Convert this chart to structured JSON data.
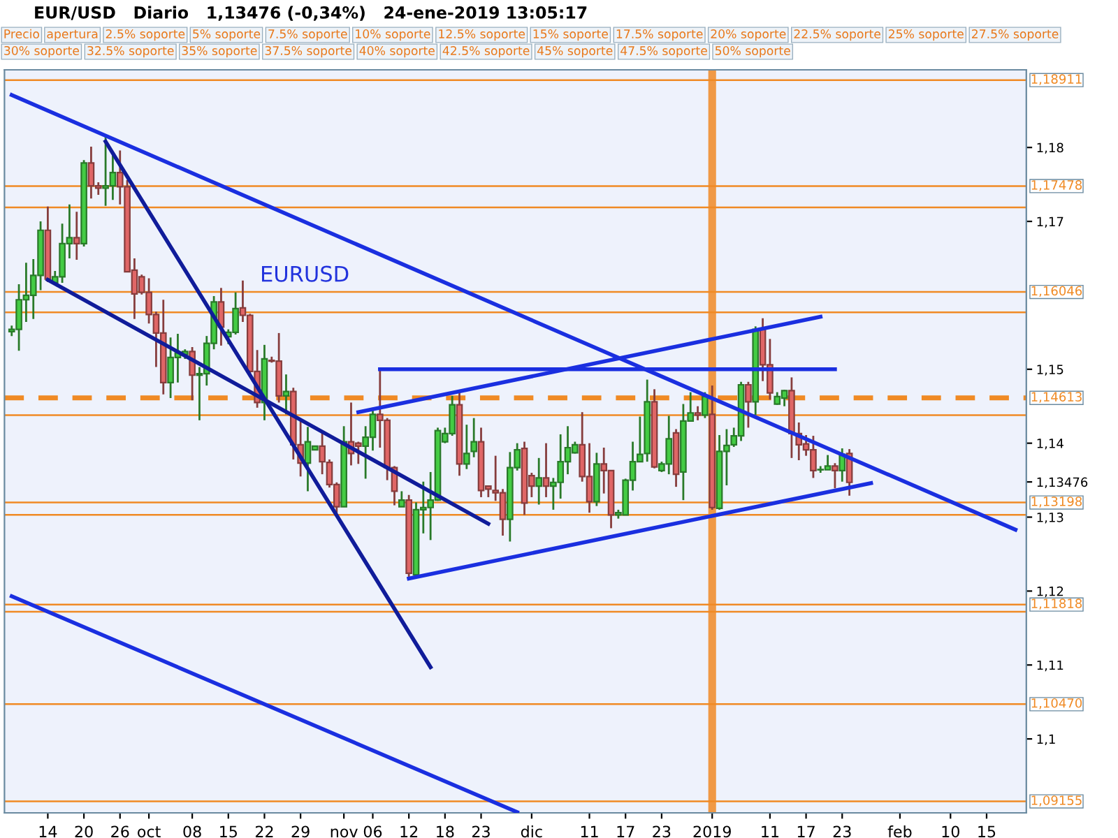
{
  "chart_data": {
    "type": "candlestick",
    "title": "EUR/USD   Diario   1,13476 (-0,34%)   24-ene-2019 13:05:17",
    "categories": [
      null,
      null,
      null,
      null,
      null,
      "14",
      null,
      null,
      null,
      null,
      "20",
      null,
      null,
      null,
      null,
      "26",
      null,
      null,
      null,
      "oct",
      null,
      null,
      null,
      null,
      null,
      "08",
      null,
      null,
      null,
      null,
      "15",
      null,
      null,
      null,
      null,
      "22",
      null,
      null,
      null,
      null,
      "29",
      null,
      null,
      null,
      null,
      null,
      "nov",
      null,
      null,
      null,
      "06",
      null,
      null,
      null,
      null,
      "12",
      null,
      null,
      null,
      null,
      "18",
      null,
      null,
      null,
      null,
      "23",
      null,
      null,
      null,
      null,
      null,
      null,
      "dic",
      null,
      null,
      null,
      null,
      null,
      null,
      null,
      "11",
      null,
      null,
      null,
      null,
      "17",
      null,
      null,
      null,
      null,
      "23",
      null,
      null,
      null,
      null,
      null,
      null,
      "2019",
      null,
      null,
      null,
      null,
      null,
      null,
      null,
      "11",
      null,
      null,
      null,
      null,
      "17",
      null,
      null,
      null,
      null,
      "23",
      null,
      null,
      null,
      null,
      null,
      null,
      null,
      "feb",
      null,
      null,
      null,
      null,
      null,
      null,
      "10",
      null,
      null,
      null,
      null,
      "15",
      null,
      null,
      null,
      null,
      null
    ],
    "ohlc": [
      [
        1.1551,
        1.1559,
        1.1545,
        1.1554
      ],
      [
        1.1554,
        1.1615,
        1.1525,
        1.1594
      ],
      [
        1.1594,
        1.1644,
        1.1564,
        1.16
      ],
      [
        1.16,
        1.1649,
        1.1568,
        1.1627
      ],
      [
        1.1627,
        1.17,
        1.1607,
        1.1688
      ],
      [
        1.1688,
        1.172,
        1.1618,
        1.1622
      ],
      [
        1.1617,
        1.1633,
        1.1617,
        1.1625
      ],
      [
        1.1625,
        1.1697,
        1.1617,
        1.167
      ],
      [
        1.167,
        1.1723,
        1.165,
        1.1678
      ],
      [
        1.1678,
        1.1713,
        1.1648,
        1.167
      ],
      [
        1.167,
        1.1783,
        1.1666,
        1.1779
      ],
      [
        1.1779,
        1.1801,
        1.1731,
        1.1748
      ],
      [
        1.1748,
        1.1753,
        1.1736,
        1.1745
      ],
      [
        1.1745,
        1.1814,
        1.1721,
        1.1748
      ],
      [
        1.1748,
        1.1792,
        1.1729,
        1.1766
      ],
      [
        1.1766,
        1.1796,
        1.1723,
        1.1747
      ],
      [
        1.1747,
        1.1756,
        1.1632,
        1.1632
      ],
      [
        1.1634,
        1.165,
        1.1568,
        1.1602
      ],
      [
        1.1625,
        1.1628,
        1.1601,
        1.1604
      ],
      [
        1.1604,
        1.1623,
        1.1562,
        1.1574
      ],
      [
        1.1574,
        1.1578,
        1.1503,
        1.1549
      ],
      [
        1.1549,
        1.1594,
        1.1466,
        1.1482
      ],
      [
        1.1482,
        1.1543,
        1.1461,
        1.1516
      ],
      [
        1.1516,
        1.1548,
        1.1482,
        1.1522
      ],
      [
        1.152,
        1.1527,
        1.1514,
        1.1524
      ],
      [
        1.1524,
        1.153,
        1.1458,
        1.1492
      ],
      [
        1.1492,
        1.1503,
        1.1431,
        1.1494
      ],
      [
        1.1494,
        1.1545,
        1.1478,
        1.1535
      ],
      [
        1.1535,
        1.1599,
        1.1527,
        1.1591
      ],
      [
        1.1591,
        1.161,
        1.1532,
        1.1557
      ],
      [
        1.1544,
        1.1554,
        1.1534,
        1.155
      ],
      [
        1.155,
        1.1604,
        1.1547,
        1.1582
      ],
      [
        1.1583,
        1.162,
        1.1564,
        1.1573
      ],
      [
        1.1573,
        1.1575,
        1.1494,
        1.1497
      ],
      [
        1.1497,
        1.1526,
        1.1448,
        1.1455
      ],
      [
        1.1455,
        1.1533,
        1.1431,
        1.1514
      ],
      [
        1.1512,
        1.1517,
        1.1509,
        1.1511
      ],
      [
        1.1511,
        1.1549,
        1.1455,
        1.1464
      ],
      [
        1.1464,
        1.1493,
        1.1439,
        1.147
      ],
      [
        1.147,
        1.1475,
        1.1378,
        1.1398
      ],
      [
        1.1398,
        1.1433,
        1.1355,
        1.1373
      ],
      [
        1.1373,
        1.1422,
        1.1335,
        1.1402
      ],
      [
        1.1391,
        1.1396,
        1.1391,
        1.1396
      ],
      [
        1.1396,
        1.1416,
        1.1358,
        1.1375
      ],
      [
        1.1374,
        1.1378,
        1.134,
        1.1344
      ],
      [
        1.1344,
        1.1347,
        1.13,
        1.1314
      ],
      [
        1.1314,
        1.1423,
        1.1314,
        1.1402
      ],
      [
        1.1402,
        1.1455,
        1.137,
        1.1386
      ],
      [
        1.14,
        1.1402,
        1.1372,
        1.1396
      ],
      [
        1.1396,
        1.1423,
        1.1352,
        1.1408
      ],
      [
        1.1408,
        1.1448,
        1.139,
        1.1439
      ],
      [
        1.1439,
        1.15,
        1.1394,
        1.1431
      ],
      [
        1.1431,
        1.1434,
        1.135,
        1.1367
      ],
      [
        1.1367,
        1.1369,
        1.1316,
        1.1335
      ],
      [
        1.1314,
        1.1335,
        1.1314,
        1.1323
      ],
      [
        1.1323,
        1.133,
        1.1216,
        1.1224
      ],
      [
        1.1222,
        1.132,
        1.1222,
        1.131
      ],
      [
        1.131,
        1.1348,
        1.1278,
        1.1313
      ],
      [
        1.1313,
        1.1361,
        1.1269,
        1.1323
      ],
      [
        1.1323,
        1.1421,
        1.1322,
        1.1417
      ],
      [
        1.1402,
        1.1421,
        1.14,
        1.1413
      ],
      [
        1.1413,
        1.1464,
        1.141,
        1.1452
      ],
      [
        1.1452,
        1.1469,
        1.1356,
        1.1372
      ],
      [
        1.1372,
        1.1425,
        1.1365,
        1.1386
      ],
      [
        1.1389,
        1.1434,
        1.1381,
        1.1402
      ],
      [
        1.1402,
        1.1421,
        1.1327,
        1.1336
      ],
      [
        1.1342,
        1.1342,
        1.1327,
        1.1338
      ],
      [
        1.1336,
        1.1383,
        1.1322,
        1.1333
      ],
      [
        1.1333,
        1.1338,
        1.1275,
        1.1297
      ],
      [
        1.1297,
        1.1388,
        1.1267,
        1.1367
      ],
      [
        1.1367,
        1.14,
        1.1363,
        1.1391
      ],
      [
        1.1393,
        1.1402,
        1.1303,
        1.1319
      ],
      [
        1.1356,
        1.136,
        1.1327,
        1.1342
      ],
      [
        1.1342,
        1.138,
        1.1317,
        1.1353
      ],
      [
        1.1353,
        1.14,
        1.1327,
        1.1342
      ],
      [
        1.1342,
        1.1353,
        1.131,
        1.1347
      ],
      [
        1.1347,
        1.1412,
        1.1325,
        1.1375
      ],
      [
        1.1375,
        1.1423,
        1.1358,
        1.1394
      ],
      [
        1.1387,
        1.1402,
        1.1386,
        1.1398
      ],
      [
        1.1398,
        1.1442,
        1.1348,
        1.1355
      ],
      [
        1.1355,
        1.14,
        1.1306,
        1.1321
      ],
      [
        1.1321,
        1.1387,
        1.1315,
        1.1372
      ],
      [
        1.1372,
        1.1394,
        1.1332,
        1.1363
      ],
      [
        1.1363,
        1.1363,
        1.1285,
        1.1303
      ],
      [
        1.1303,
        1.131,
        1.1298,
        1.1306
      ],
      [
        1.1303,
        1.1352,
        1.1303,
        1.135
      ],
      [
        1.135,
        1.1402,
        1.1336,
        1.1375
      ],
      [
        1.1375,
        1.1436,
        1.1375,
        1.1385
      ],
      [
        1.1386,
        1.1486,
        1.1375,
        1.1456
      ],
      [
        1.1456,
        1.1473,
        1.1366,
        1.1368
      ],
      [
        1.1363,
        1.1375,
        1.1361,
        1.1372
      ],
      [
        1.1372,
        1.1437,
        1.1358,
        1.1406
      ],
      [
        1.1414,
        1.1419,
        1.1341,
        1.1358
      ],
      [
        1.1361,
        1.1453,
        1.1323,
        1.143
      ],
      [
        1.143,
        1.1469,
        1.143,
        1.1441
      ],
      [
        1.1441,
        1.145,
        1.1431,
        1.1438
      ],
      [
        1.1438,
        1.1469,
        1.1434,
        1.1463
      ],
      [
        1.1439,
        1.1478,
        1.131,
        1.1313
      ],
      [
        1.1312,
        1.1411,
        1.131,
        1.1389
      ],
      [
        1.1389,
        1.1419,
        1.1343,
        1.1397
      ],
      [
        1.1398,
        1.1421,
        1.1395,
        1.141
      ],
      [
        1.141,
        1.1483,
        1.1403,
        1.1479
      ],
      [
        1.1479,
        1.1483,
        1.1421,
        1.1456
      ],
      [
        1.1456,
        1.1558,
        1.1438,
        1.1554
      ],
      [
        1.1554,
        1.1569,
        1.1484,
        1.1506
      ],
      [
        1.1506,
        1.1541,
        1.1459,
        1.1468
      ],
      [
        1.1453,
        1.1469,
        1.1452,
        1.1463
      ],
      [
        1.1461,
        1.1472,
        1.145,
        1.1471
      ],
      [
        1.1471,
        1.1489,
        1.138,
        1.1413
      ],
      [
        1.1413,
        1.1428,
        1.1377,
        1.1398
      ],
      [
        1.1399,
        1.1411,
        1.1383,
        1.1391
      ],
      [
        1.1391,
        1.141,
        1.1353,
        1.1363
      ],
      [
        1.1364,
        1.1369,
        1.136,
        1.1364
      ],
      [
        1.1364,
        1.1384,
        1.1364,
        1.1369
      ],
      [
        1.1369,
        1.1373,
        1.1339,
        1.1363
      ],
      [
        1.1363,
        1.1393,
        1.1348,
        1.1385
      ],
      [
        1.1386,
        1.1392,
        1.1329,
        1.1347
      ],
      null,
      null,
      null,
      null,
      null,
      null,
      null,
      null,
      null,
      null,
      null,
      null,
      null,
      null,
      null,
      null,
      null,
      null,
      null,
      null,
      null,
      null,
      null,
      null
    ],
    "series": [
      {
        "type": "line",
        "color": "#1a2fe0",
        "values": [
          1.1871,
          null,
          null,
          null,
          null,
          null,
          null,
          null,
          null,
          null,
          null,
          null,
          null,
          null,
          null,
          null,
          null,
          null,
          null,
          null,
          null,
          null,
          null,
          null,
          null,
          null,
          null,
          null,
          null,
          null,
          null,
          null,
          null,
          null,
          null,
          null,
          null,
          null,
          null,
          null,
          null,
          null,
          null,
          null,
          null,
          null,
          null,
          null,
          null,
          null,
          null,
          null,
          null,
          null,
          null,
          null,
          null,
          null,
          null,
          null,
          null,
          null,
          null,
          null,
          null,
          null,
          null,
          null,
          null,
          null,
          null,
          null,
          null,
          null,
          null,
          null,
          null,
          null,
          null,
          null,
          null,
          null,
          null,
          null,
          null,
          null,
          null,
          null,
          null,
          null,
          null,
          null,
          null,
          null,
          null,
          null,
          null,
          null,
          null,
          null,
          null,
          null,
          null,
          null,
          null,
          null,
          null,
          null,
          null,
          null,
          null,
          null,
          null,
          null,
          null,
          null,
          null,
          null,
          null,
          null,
          null,
          null,
          null,
          null,
          null,
          null,
          null,
          null,
          null,
          null,
          null,
          null,
          null,
          null,
          null,
          null,
          null,
          null,
          null,
          1.1283,
          null
        ]
      },
      {
        "type": "line",
        "color": "#101c9a",
        "values": [
          null,
          null,
          null,
          null,
          null,
          null,
          null,
          null,
          null,
          null,
          null,
          null,
          null,
          1.1808,
          null,
          null,
          null,
          null,
          null,
          null,
          null,
          null,
          null,
          null,
          null,
          null,
          null,
          null,
          null,
          null,
          null,
          null,
          null,
          null,
          null,
          null,
          null,
          null,
          null,
          null,
          null,
          null,
          null,
          null,
          null,
          null,
          null,
          null,
          null,
          null,
          null,
          null,
          null,
          null,
          null,
          null,
          null,
          null,
          1.1097,
          null,
          null,
          null,
          null,
          null,
          null,
          null,
          null,
          null,
          null,
          null,
          null,
          null,
          null,
          null,
          null,
          null,
          null,
          null,
          null,
          null,
          null,
          null,
          null,
          null,
          null,
          null,
          null,
          null,
          null,
          null,
          null,
          null,
          null,
          null,
          null,
          null,
          null,
          null,
          null,
          null,
          null,
          null,
          null,
          null,
          null,
          null,
          null,
          null,
          null,
          null,
          null,
          null,
          null,
          null,
          null,
          null,
          null,
          null,
          null,
          null,
          null,
          null,
          null,
          null,
          null,
          null,
          null,
          null,
          null,
          null,
          null,
          null,
          null,
          null,
          null,
          null,
          null,
          null,
          null,
          null,
          null
        ]
      },
      {
        "type": "line",
        "color": "#101c9a",
        "values": [
          null,
          null,
          null,
          null,
          null,
          1.1621,
          null,
          null,
          null,
          null,
          null,
          null,
          null,
          null,
          null,
          null,
          null,
          null,
          null,
          null,
          null,
          null,
          null,
          null,
          null,
          null,
          null,
          null,
          null,
          null,
          null,
          null,
          null,
          null,
          null,
          null,
          null,
          null,
          null,
          null,
          null,
          null,
          null,
          null,
          null,
          null,
          null,
          null,
          null,
          null,
          null,
          null,
          null,
          null,
          null,
          null,
          null,
          null,
          null,
          null,
          null,
          null,
          null,
          null,
          null,
          null,
          1.1291,
          null,
          null,
          null,
          null,
          null,
          null,
          null,
          null,
          null,
          null,
          null,
          null,
          null,
          null,
          null,
          null,
          null,
          null,
          null,
          null,
          null,
          null,
          null,
          null,
          null,
          null,
          null,
          null,
          null,
          null,
          null,
          null,
          null,
          null,
          null,
          null,
          null,
          null,
          null,
          null,
          null,
          null,
          null,
          null,
          null,
          null,
          null,
          null,
          null,
          null,
          null,
          null,
          null,
          null,
          null,
          null,
          null,
          null,
          null,
          null,
          null,
          null,
          null,
          null,
          null,
          null,
          null,
          null,
          null,
          null,
          null,
          null,
          null,
          null
        ]
      },
      {
        "type": "line",
        "color": "#1a2fe0",
        "values": [
          1.1193,
          null,
          null,
          null,
          null,
          null,
          null,
          null,
          null,
          null,
          null,
          null,
          null,
          null,
          null,
          null,
          null,
          null,
          null,
          null,
          null,
          null,
          null,
          null,
          null,
          null,
          null,
          null,
          null,
          null,
          null,
          null,
          null,
          null,
          null,
          null,
          null,
          null,
          null,
          null,
          null,
          null,
          null,
          null,
          null,
          null,
          null,
          null,
          null,
          null,
          null,
          null,
          null,
          null,
          null,
          null,
          null,
          null,
          null,
          null,
          null,
          null,
          null,
          null,
          null,
          null,
          null,
          null,
          null,
          null,
          1.0901,
          null,
          null,
          null,
          null,
          null,
          null,
          null,
          null,
          null,
          null,
          null,
          null,
          null,
          null,
          null,
          null,
          null,
          null,
          null,
          null,
          null,
          null,
          null,
          null,
          null,
          null,
          null,
          null,
          null,
          null,
          null,
          null,
          null,
          null,
          null,
          null,
          null,
          null,
          null,
          null,
          null,
          null,
          null,
          null,
          null,
          null,
          null,
          null,
          null,
          null,
          null,
          null,
          null,
          null,
          null,
          null,
          null,
          null,
          null,
          null,
          null,
          null,
          null,
          null,
          null,
          null,
          null,
          null,
          null,
          null
        ]
      },
      {
        "type": "line",
        "color": "#1a2fe0",
        "values": [
          null,
          null,
          null,
          null,
          null,
          null,
          null,
          null,
          null,
          null,
          null,
          null,
          null,
          null,
          null,
          null,
          null,
          null,
          null,
          null,
          null,
          null,
          null,
          null,
          null,
          null,
          null,
          null,
          null,
          null,
          null,
          null,
          null,
          null,
          null,
          null,
          null,
          null,
          null,
          null,
          null,
          null,
          null,
          null,
          null,
          null,
          null,
          null,
          1.1442,
          null,
          null,
          null,
          null,
          null,
          null,
          null,
          null,
          null,
          null,
          null,
          null,
          null,
          null,
          null,
          null,
          null,
          null,
          null,
          null,
          null,
          null,
          null,
          null,
          null,
          null,
          null,
          null,
          null,
          null,
          null,
          null,
          null,
          null,
          null,
          null,
          null,
          null,
          null,
          null,
          null,
          null,
          null,
          null,
          null,
          null,
          null,
          null,
          null,
          null,
          null,
          null,
          null,
          null,
          null,
          null,
          null,
          null,
          null,
          null,
          null,
          null,
          null,
          1.1571,
          null,
          null,
          null,
          null,
          null,
          null,
          null,
          null,
          null,
          null,
          null,
          null,
          null,
          null,
          null,
          null,
          null,
          null,
          null,
          null,
          null,
          null,
          null,
          null,
          null,
          null,
          null,
          null
        ]
      },
      {
        "type": "line",
        "color": "#1a2fe0",
        "values": [
          null,
          null,
          null,
          null,
          null,
          null,
          null,
          null,
          null,
          null,
          null,
          null,
          null,
          null,
          null,
          null,
          null,
          null,
          null,
          null,
          null,
          null,
          null,
          null,
          null,
          null,
          null,
          null,
          null,
          null,
          null,
          null,
          null,
          null,
          null,
          null,
          null,
          null,
          null,
          null,
          null,
          null,
          null,
          null,
          null,
          null,
          null,
          null,
          null,
          null,
          null,
          1.15,
          null,
          null,
          null,
          null,
          null,
          null,
          null,
          null,
          null,
          null,
          null,
          null,
          null,
          null,
          null,
          null,
          null,
          null,
          null,
          null,
          null,
          null,
          null,
          null,
          null,
          null,
          null,
          null,
          null,
          null,
          null,
          null,
          null,
          null,
          null,
          null,
          null,
          null,
          null,
          null,
          null,
          null,
          null,
          null,
          null,
          null,
          null,
          null,
          null,
          null,
          null,
          null,
          null,
          null,
          null,
          null,
          null,
          null,
          null,
          null,
          null,
          null,
          1.15,
          null,
          null,
          null,
          null,
          null,
          null,
          null,
          null,
          null,
          null,
          null,
          null,
          null,
          null,
          null,
          null,
          null,
          null,
          null,
          null,
          null,
          null,
          null,
          null,
          null,
          null
        ]
      },
      {
        "type": "line",
        "color": "#1a2fe0",
        "values": [
          null,
          null,
          null,
          null,
          null,
          null,
          null,
          null,
          null,
          null,
          null,
          null,
          null,
          null,
          null,
          null,
          null,
          null,
          null,
          null,
          null,
          null,
          null,
          null,
          null,
          null,
          null,
          null,
          null,
          null,
          null,
          null,
          null,
          null,
          null,
          null,
          null,
          null,
          null,
          null,
          null,
          null,
          null,
          null,
          null,
          null,
          null,
          null,
          null,
          null,
          null,
          null,
          null,
          null,
          null,
          1.1217,
          null,
          null,
          null,
          null,
          null,
          null,
          null,
          null,
          null,
          null,
          null,
          null,
          null,
          null,
          null,
          null,
          null,
          null,
          null,
          null,
          null,
          null,
          null,
          null,
          null,
          null,
          null,
          null,
          null,
          null,
          null,
          null,
          null,
          null,
          null,
          null,
          null,
          null,
          null,
          null,
          null,
          null,
          null,
          null,
          null,
          null,
          null,
          null,
          null,
          null,
          null,
          null,
          null,
          null,
          null,
          null,
          null,
          null,
          null,
          null,
          null,
          null,
          null,
          1.1346,
          null,
          null,
          null,
          null,
          null,
          null,
          null,
          null,
          null,
          null,
          null,
          null,
          null,
          null,
          null,
          null,
          null,
          null,
          null,
          null,
          null
        ]
      }
    ],
    "ref_lines": [
      {
        "axis": "x",
        "value": "2019",
        "color": "#f08a24"
      },
      {
        "axis": "y",
        "value": 1.18911,
        "label": "1,18911",
        "color": "#f08a24"
      },
      {
        "axis": "y",
        "value": 1.17478,
        "label": "1,17478",
        "color": "#f08a24"
      },
      {
        "axis": "y",
        "value": 1.1719,
        "color": "#f08a24"
      },
      {
        "axis": "y",
        "value": 1.16046,
        "label": "1,16046",
        "color": "#f08a24"
      },
      {
        "axis": "y",
        "value": 1.1577,
        "color": "#f08a24"
      },
      {
        "axis": "y",
        "value": 1.14613,
        "label": "1,14613",
        "color": "#f08a24",
        "line_style": "dashed"
      },
      {
        "axis": "y",
        "value": 1.1438,
        "color": "#f08a24"
      },
      {
        "axis": "y",
        "value": 1.13198,
        "label": "1,13198",
        "color": "#f08a24"
      },
      {
        "axis": "y",
        "value": 1.1303,
        "color": "#f08a24"
      },
      {
        "axis": "y",
        "value": 1.11818,
        "label": "1,11818",
        "color": "#f08a24"
      },
      {
        "axis": "y",
        "value": 1.1172,
        "color": "#f08a24"
      },
      {
        "axis": "y",
        "value": 1.1047,
        "label": "1,10470",
        "color": "#f08a24"
      },
      {
        "axis": "y",
        "value": 1.09155,
        "label": "1,09155",
        "color": "#f08a24"
      }
    ],
    "ylim": [
      1.09,
      1.1905
    ],
    "yticks": [
      {
        "value": 1.18,
        "label": "1,18"
      },
      {
        "value": 1.17,
        "label": "1,17"
      },
      {
        "value": 1.15,
        "label": "1,15"
      },
      {
        "value": 1.14,
        "label": "1,14"
      },
      {
        "value": 1.13476,
        "label": "1,13476"
      },
      {
        "value": 1.13,
        "label": "1,13"
      },
      {
        "value": 1.12,
        "label": "1,12"
      },
      {
        "value": 1.11,
        "label": "1,11"
      },
      {
        "value": 1.1,
        "label": "1,1"
      }
    ],
    "annotations": [
      "EURUSD",
      "Precio",
      "apertura",
      "2.5% soporte",
      "5% soporte",
      "7.5% soporte",
      "10% soporte",
      "12.5% soporte",
      "15% soporte",
      "17.5% soporte",
      "20% soporte",
      "22.5% soporte",
      "25% soporte",
      "27.5% soporte",
      "30% soporte",
      "32.5% soporte",
      "35% soporte",
      "37.5% soporte",
      "40% soporte",
      "42.5% soporte",
      "45% soporte",
      "47.5% soporte",
      "50% soporte"
    ]
  }
}
